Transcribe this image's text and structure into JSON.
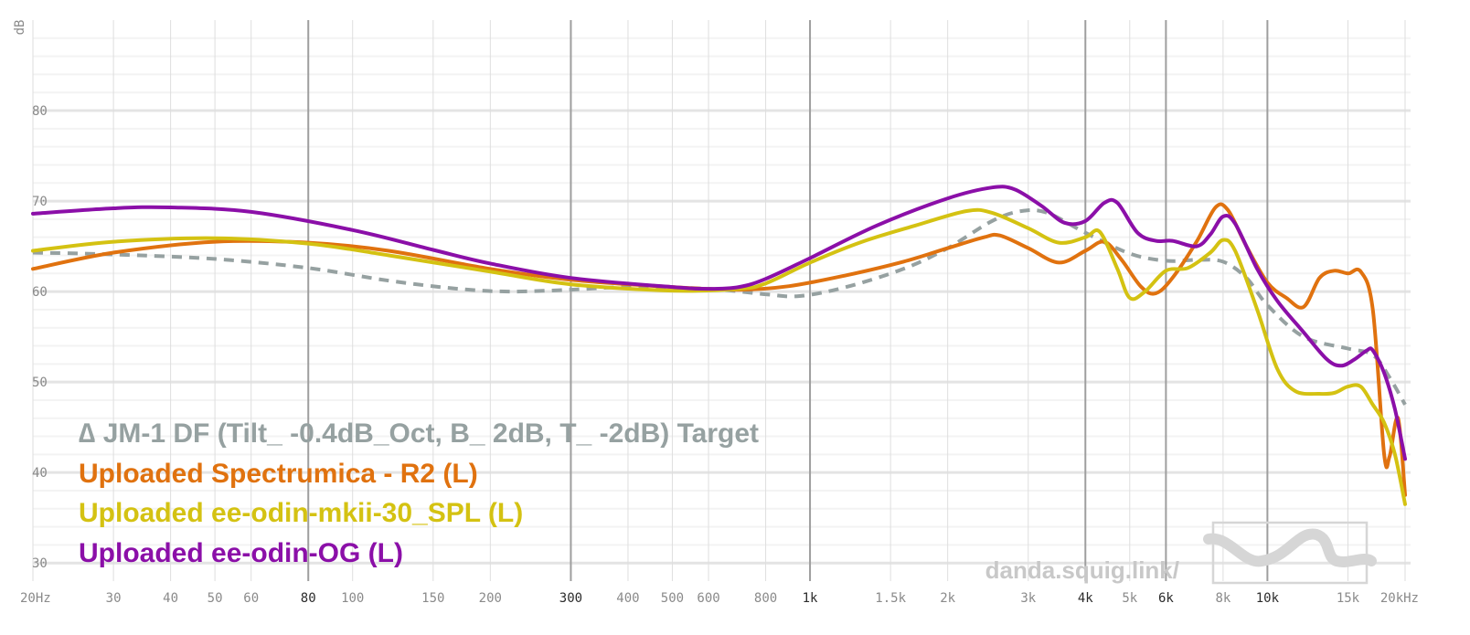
{
  "chart_data": {
    "type": "line",
    "xscale": "log",
    "xlim": [
      20,
      20000
    ],
    "ylim": [
      28,
      90
    ],
    "ylabel": "dB",
    "y_ticks": [
      30,
      40,
      50,
      60,
      70,
      80
    ],
    "x_ticks": [
      {
        "v": 20,
        "label": "20Hz",
        "major": false
      },
      {
        "v": 30,
        "label": "30",
        "major": false
      },
      {
        "v": 40,
        "label": "40",
        "major": false
      },
      {
        "v": 50,
        "label": "50",
        "major": false
      },
      {
        "v": 60,
        "label": "60",
        "major": false
      },
      {
        "v": 80,
        "label": "80",
        "major": true
      },
      {
        "v": 100,
        "label": "100",
        "major": false
      },
      {
        "v": 150,
        "label": "150",
        "major": false
      },
      {
        "v": 200,
        "label": "200",
        "major": false
      },
      {
        "v": 300,
        "label": "300",
        "major": true
      },
      {
        "v": 400,
        "label": "400",
        "major": false
      },
      {
        "v": 500,
        "label": "500",
        "major": false
      },
      {
        "v": 600,
        "label": "600",
        "major": false
      },
      {
        "v": 800,
        "label": "800",
        "major": false
      },
      {
        "v": 1000,
        "label": "1k",
        "major": true
      },
      {
        "v": 1500,
        "label": "1.5k",
        "major": false
      },
      {
        "v": 2000,
        "label": "2k",
        "major": false
      },
      {
        "v": 3000,
        "label": "3k",
        "major": false
      },
      {
        "v": 4000,
        "label": "4k",
        "major": true
      },
      {
        "v": 5000,
        "label": "5k",
        "major": false
      },
      {
        "v": 6000,
        "label": "6k",
        "major": true
      },
      {
        "v": 8000,
        "label": "8k",
        "major": false
      },
      {
        "v": 10000,
        "label": "10k",
        "major": true
      },
      {
        "v": 15000,
        "label": "15k",
        "major": false
      },
      {
        "v": 20000,
        "label": "20kHz",
        "major": false
      }
    ],
    "grid": true,
    "legend_position": "bottom-left",
    "watermark": "danda.squig.link/",
    "series": [
      {
        "name": "∆ JM-1 DF (Tilt_ -0.4dB_Oct, B_ 2dB, T_ -2dB) Target",
        "color": "#96a1a1",
        "dashed": true,
        "points": [
          [
            20,
            64.3
          ],
          [
            30,
            64.1
          ],
          [
            50,
            63.6
          ],
          [
            80,
            62.6
          ],
          [
            120,
            61.2
          ],
          [
            170,
            60.3
          ],
          [
            220,
            60.0
          ],
          [
            300,
            60.2
          ],
          [
            400,
            60.5
          ],
          [
            600,
            60.3
          ],
          [
            800,
            59.7
          ],
          [
            950,
            59.5
          ],
          [
            1200,
            60.5
          ],
          [
            1600,
            62.5
          ],
          [
            2000,
            64.8
          ],
          [
            2500,
            67.8
          ],
          [
            2900,
            68.9
          ],
          [
            3300,
            68.7
          ],
          [
            4000,
            66.5
          ],
          [
            5000,
            64.2
          ],
          [
            6000,
            63.4
          ],
          [
            7000,
            63.5
          ],
          [
            8000,
            63.3
          ],
          [
            9000,
            61.5
          ],
          [
            10000,
            58.5
          ],
          [
            12000,
            55.0
          ],
          [
            15000,
            53.7
          ],
          [
            17000,
            53.0
          ],
          [
            18500,
            50.5
          ],
          [
            20000,
            47.5
          ]
        ]
      },
      {
        "name": "Uploaded Spectrumica - R2 (L)",
        "color": "#e0720f",
        "dashed": false,
        "points": [
          [
            20,
            62.5
          ],
          [
            30,
            64.3
          ],
          [
            50,
            65.5
          ],
          [
            80,
            65.4
          ],
          [
            120,
            64.5
          ],
          [
            200,
            62.5
          ],
          [
            300,
            61.3
          ],
          [
            500,
            60.5
          ],
          [
            700,
            60.2
          ],
          [
            900,
            60.6
          ],
          [
            1200,
            61.8
          ],
          [
            1600,
            63.3
          ],
          [
            2000,
            64.8
          ],
          [
            2400,
            66.0
          ],
          [
            2600,
            66.2
          ],
          [
            3000,
            64.8
          ],
          [
            3500,
            63.2
          ],
          [
            4000,
            64.5
          ],
          [
            4400,
            65.5
          ],
          [
            4800,
            63.5
          ],
          [
            5300,
            60.5
          ],
          [
            5700,
            59.8
          ],
          [
            6200,
            61.5
          ],
          [
            7000,
            65.5
          ],
          [
            7700,
            69.3
          ],
          [
            8200,
            69.0
          ],
          [
            9000,
            65.0
          ],
          [
            10000,
            61.0
          ],
          [
            11000,
            59.3
          ],
          [
            12000,
            58.3
          ],
          [
            13000,
            61.5
          ],
          [
            14000,
            62.3
          ],
          [
            15000,
            62.0
          ],
          [
            16000,
            62.2
          ],
          [
            17000,
            58.0
          ],
          [
            18000,
            42.0
          ],
          [
            18500,
            41.8
          ],
          [
            19300,
            46.0
          ],
          [
            20000,
            37.5
          ]
        ]
      },
      {
        "name": "Uploaded ee-odin-mkii-30_SPL (L)",
        "color": "#d4c212",
        "dashed": false,
        "points": [
          [
            20,
            64.5
          ],
          [
            30,
            65.5
          ],
          [
            50,
            65.9
          ],
          [
            80,
            65.3
          ],
          [
            120,
            64.0
          ],
          [
            200,
            62.2
          ],
          [
            300,
            60.8
          ],
          [
            500,
            60.1
          ],
          [
            700,
            60.3
          ],
          [
            800,
            60.9
          ],
          [
            1000,
            63.2
          ],
          [
            1300,
            65.5
          ],
          [
            1700,
            67.3
          ],
          [
            2200,
            68.9
          ],
          [
            2500,
            68.7
          ],
          [
            3000,
            67.0
          ],
          [
            3500,
            65.4
          ],
          [
            4000,
            66.0
          ],
          [
            4300,
            66.6
          ],
          [
            4700,
            62.5
          ],
          [
            5000,
            59.3
          ],
          [
            5400,
            60.0
          ],
          [
            6000,
            62.3
          ],
          [
            6700,
            62.6
          ],
          [
            7500,
            64.3
          ],
          [
            8000,
            65.7
          ],
          [
            8500,
            64.5
          ],
          [
            9500,
            58.0
          ],
          [
            10500,
            51.5
          ],
          [
            11500,
            49.0
          ],
          [
            13000,
            48.7
          ],
          [
            14000,
            48.8
          ],
          [
            15000,
            49.5
          ],
          [
            16000,
            49.5
          ],
          [
            17000,
            47.5
          ],
          [
            18000,
            45.5
          ],
          [
            19000,
            42.0
          ],
          [
            20000,
            36.5
          ]
        ]
      },
      {
        "name": "Uploaded ee-odin-OG (L)",
        "color": "#8b0fa8",
        "dashed": false,
        "points": [
          [
            20,
            68.6
          ],
          [
            30,
            69.2
          ],
          [
            40,
            69.3
          ],
          [
            60,
            68.8
          ],
          [
            100,
            66.8
          ],
          [
            150,
            64.6
          ],
          [
            200,
            63.1
          ],
          [
            300,
            61.5
          ],
          [
            500,
            60.5
          ],
          [
            600,
            60.3
          ],
          [
            700,
            60.5
          ],
          [
            800,
            61.4
          ],
          [
            1000,
            63.7
          ],
          [
            1400,
            67.3
          ],
          [
            2000,
            70.3
          ],
          [
            2500,
            71.5
          ],
          [
            2800,
            71.3
          ],
          [
            3200,
            69.5
          ],
          [
            3600,
            67.6
          ],
          [
            4000,
            67.8
          ],
          [
            4400,
            69.8
          ],
          [
            4700,
            69.8
          ],
          [
            5200,
            66.5
          ],
          [
            5700,
            65.6
          ],
          [
            6200,
            65.6
          ],
          [
            7000,
            65.0
          ],
          [
            7500,
            66.3
          ],
          [
            8000,
            68.3
          ],
          [
            8500,
            67.5
          ],
          [
            9500,
            62.5
          ],
          [
            10500,
            59.0
          ],
          [
            12000,
            55.5
          ],
          [
            13500,
            52.5
          ],
          [
            14500,
            51.8
          ],
          [
            15500,
            52.5
          ],
          [
            16500,
            53.5
          ],
          [
            17000,
            53.5
          ],
          [
            18000,
            51.0
          ],
          [
            19000,
            47.0
          ],
          [
            20000,
            41.5
          ]
        ]
      }
    ]
  }
}
